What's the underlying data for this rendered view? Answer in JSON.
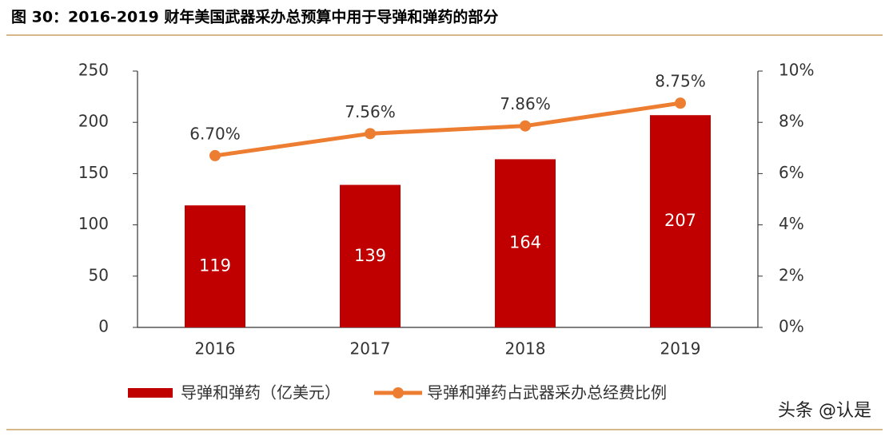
{
  "chart_data": {
    "type": "bar",
    "title": "图 30：2016-2019 财年美国武器采办总预算中用于导弹和弹药的部分",
    "categories": [
      "2016",
      "2017",
      "2018",
      "2019"
    ],
    "series": [
      {
        "name": "导弹和弹药（亿美元）",
        "type": "bar",
        "color": "#c00000",
        "values": [
          119,
          139,
          164,
          207
        ]
      },
      {
        "name": "导弹和弹药占武器采办总经费比例",
        "type": "line",
        "axis": "y2",
        "color": "#ed7d31",
        "values": [
          6.7,
          7.56,
          7.86,
          8.75
        ],
        "value_labels": [
          "6.70%",
          "7.56%",
          "7.86%",
          "8.75%"
        ]
      }
    ],
    "ylim": [
      0,
      250
    ],
    "yticks": [
      0,
      50,
      100,
      150,
      200,
      250
    ],
    "y2lim": [
      0,
      10
    ],
    "y2ticks": [
      {
        "value": 0,
        "label": "0%"
      },
      {
        "value": 2,
        "label": "2%"
      },
      {
        "value": 4,
        "label": "4%"
      },
      {
        "value": 6,
        "label": "6%"
      },
      {
        "value": 8,
        "label": "8%"
      },
      {
        "value": 10,
        "label": "10%"
      }
    ],
    "watermark": "头条 @认是"
  }
}
